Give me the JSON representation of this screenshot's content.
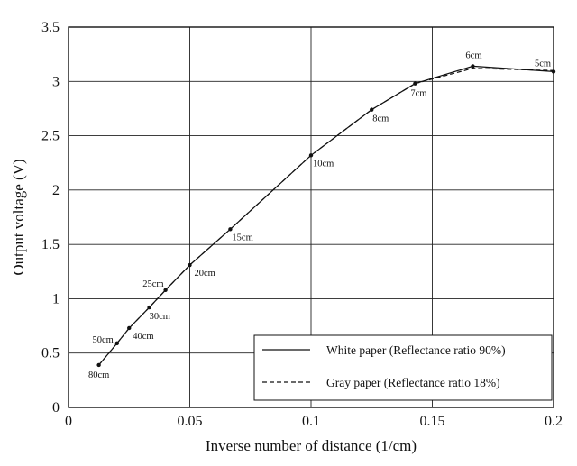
{
  "chart_data": {
    "type": "line",
    "title": "",
    "xlabel": "Inverse number of distance (1/cm)",
    "ylabel": "Output voltage (V)",
    "xlim": [
      0,
      0.2
    ],
    "ylim": [
      0,
      3.5
    ],
    "x_ticks": [
      "0",
      "0.05",
      "0.1",
      "0.15",
      "0.2"
    ],
    "y_ticks": [
      "0",
      "0.5",
      "1",
      "1.5",
      "2",
      "2.5",
      "3",
      "3.5"
    ],
    "grid": true,
    "legend_position": "bottom-right",
    "series": [
      {
        "name": "White paper (Reflectance ratio 90%)",
        "style": "solid",
        "x": [
          0.0125,
          0.02,
          0.025,
          0.0333,
          0.04,
          0.05,
          0.0667,
          0.1,
          0.125,
          0.1429,
          0.1667,
          0.2
        ],
        "y": [
          0.39,
          0.59,
          0.73,
          0.92,
          1.08,
          1.31,
          1.64,
          2.32,
          2.74,
          2.98,
          3.14,
          3.09
        ]
      },
      {
        "name": "Gray paper (Reflectance ratio 18%)",
        "style": "dashed",
        "x": [
          0.0125,
          0.02,
          0.025,
          0.0333,
          0.04,
          0.05,
          0.0667,
          0.1,
          0.125,
          0.1429,
          0.1667,
          0.2
        ],
        "y": [
          0.39,
          0.59,
          0.73,
          0.92,
          1.08,
          1.31,
          1.64,
          2.32,
          2.74,
          2.98,
          3.12,
          3.1
        ]
      }
    ],
    "point_labels": [
      {
        "x": 0.0125,
        "y": 0.39,
        "text": "80cm"
      },
      {
        "x": 0.02,
        "y": 0.59,
        "text": "50cm"
      },
      {
        "x": 0.025,
        "y": 0.73,
        "text": "40cm"
      },
      {
        "x": 0.0333,
        "y": 0.92,
        "text": "30cm"
      },
      {
        "x": 0.04,
        "y": 1.08,
        "text": "25cm"
      },
      {
        "x": 0.05,
        "y": 1.31,
        "text": "20cm"
      },
      {
        "x": 0.0667,
        "y": 1.64,
        "text": "15cm"
      },
      {
        "x": 0.1,
        "y": 2.32,
        "text": "10cm"
      },
      {
        "x": 0.125,
        "y": 2.74,
        "text": "8cm"
      },
      {
        "x": 0.1429,
        "y": 2.98,
        "text": "7cm"
      },
      {
        "x": 0.1667,
        "y": 3.14,
        "text": "6cm"
      },
      {
        "x": 0.2,
        "y": 3.09,
        "text": "5cm"
      }
    ]
  }
}
